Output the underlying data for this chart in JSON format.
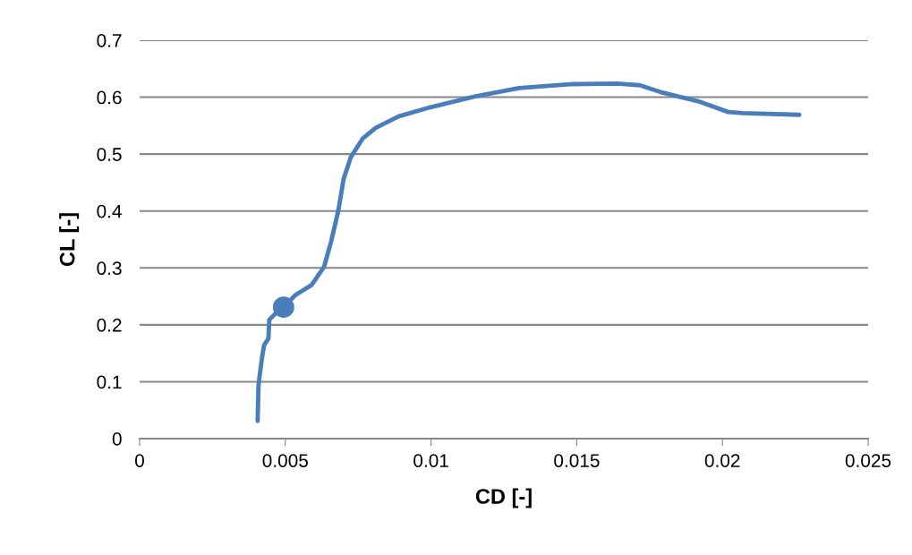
{
  "chart_data": {
    "type": "line",
    "xlabel": "CD [-]",
    "ylabel": "CL [-]",
    "xlim": [
      0,
      0.025
    ],
    "xticks": [
      0,
      0.005,
      0.01,
      0.015,
      0.02,
      0.025
    ],
    "ylim": [
      0,
      0.7
    ],
    "yticks": [
      0,
      0.1,
      0.2,
      0.3,
      0.4,
      0.5,
      0.6,
      0.7
    ],
    "grid": "y",
    "series": [
      {
        "color": "#4a7ebb",
        "x": [
          0.00405,
          0.00408,
          0.00415,
          0.0042,
          0.00427,
          0.00442,
          0.00445,
          0.00473,
          0.00494,
          0.00534,
          0.0059,
          0.00633,
          0.00657,
          0.00682,
          0.007,
          0.00725,
          0.00765,
          0.0081,
          0.00888,
          0.00995,
          0.01149,
          0.01302,
          0.01486,
          0.0164,
          0.01717,
          0.01794,
          0.01916,
          0.0202,
          0.0207,
          0.02264
        ],
        "values": [
          0.031,
          0.094,
          0.123,
          0.142,
          0.164,
          0.176,
          0.209,
          0.223,
          0.231,
          0.252,
          0.27,
          0.302,
          0.346,
          0.401,
          0.456,
          0.495,
          0.527,
          0.546,
          0.566,
          0.582,
          0.601,
          0.616,
          0.623,
          0.624,
          0.621,
          0.608,
          0.593,
          0.574,
          0.572,
          0.569
        ]
      },
      {
        "type": "scatter",
        "color": "#4a7ebb",
        "marker": "circle",
        "x": [
          0.00494
        ],
        "values": [
          0.231
        ]
      }
    ]
  }
}
